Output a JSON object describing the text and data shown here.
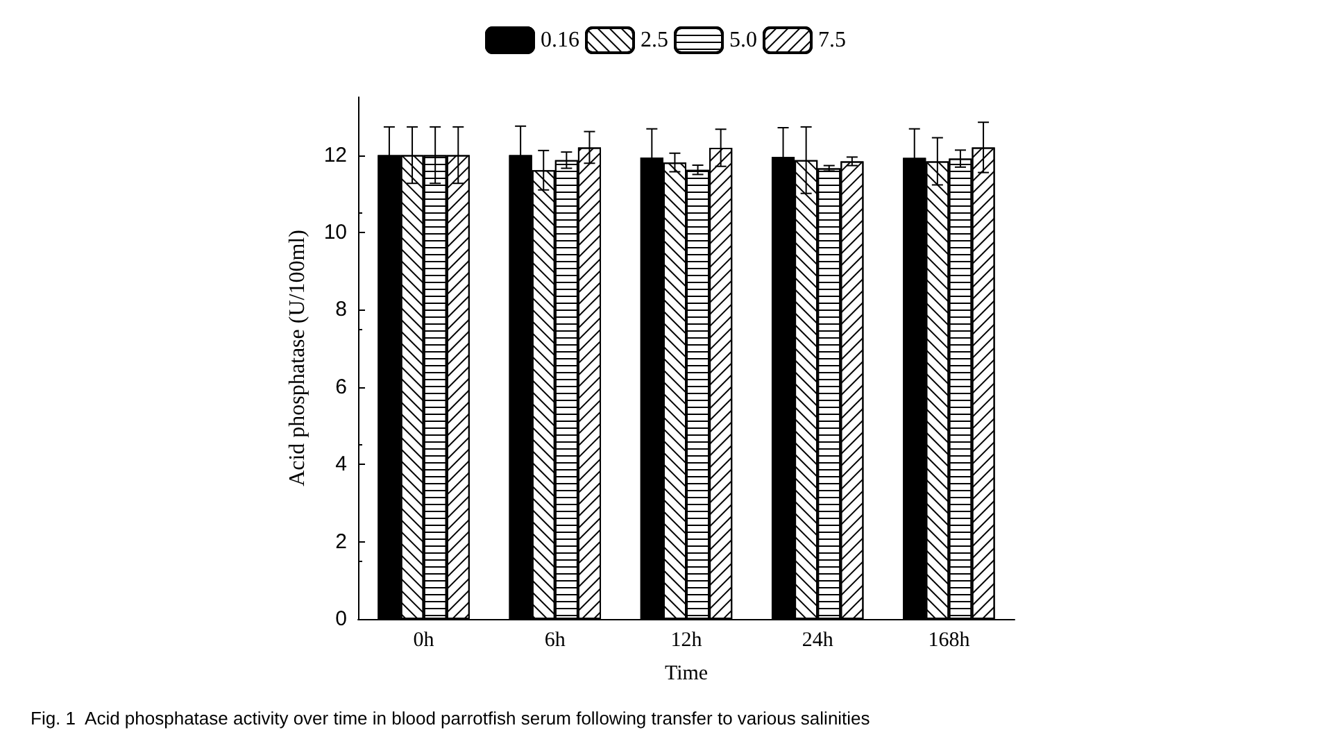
{
  "chart_data": {
    "type": "bar",
    "xlabel": "Time",
    "ylabel": "Acid phosphatase (U/100ml)",
    "categories": [
      "0h",
      "6h",
      "12h",
      "24h",
      "168h"
    ],
    "series": [
      {
        "name": "0.16",
        "color": "#000000",
        "values": [
          12.0,
          12.0,
          11.94,
          11.95,
          11.93
        ],
        "errors": [
          0.73,
          0.75,
          0.74,
          0.76,
          0.75
        ]
      },
      {
        "name": "2.5",
        "color": "#ffffff",
        "values": [
          12.0,
          11.61,
          11.81,
          11.87,
          11.84
        ],
        "errors": [
          0.73,
          0.51,
          0.24,
          0.86,
          0.61
        ]
      },
      {
        "name": "5.0",
        "color": "#ffffff",
        "values": [
          12.0,
          11.87,
          11.62,
          11.66,
          11.91
        ],
        "errors": [
          0.73,
          0.21,
          0.12,
          0.07,
          0.22
        ]
      },
      {
        "name": "7.5",
        "color": "#ffffff",
        "values": [
          12.0,
          12.2,
          12.19,
          11.84,
          12.2
        ],
        "errors": [
          0.73,
          0.41,
          0.48,
          0.11,
          0.65
        ]
      }
    ],
    "ylim": [
      0,
      13.5
    ],
    "yticks": [
      0,
      2,
      4,
      6,
      8,
      10,
      12
    ],
    "grid": false,
    "legend": "top",
    "annotations": [
      "Fig. 1  Acid phosphatase activity over time in blood parrotfish serum following transfer to various salinities"
    ]
  }
}
